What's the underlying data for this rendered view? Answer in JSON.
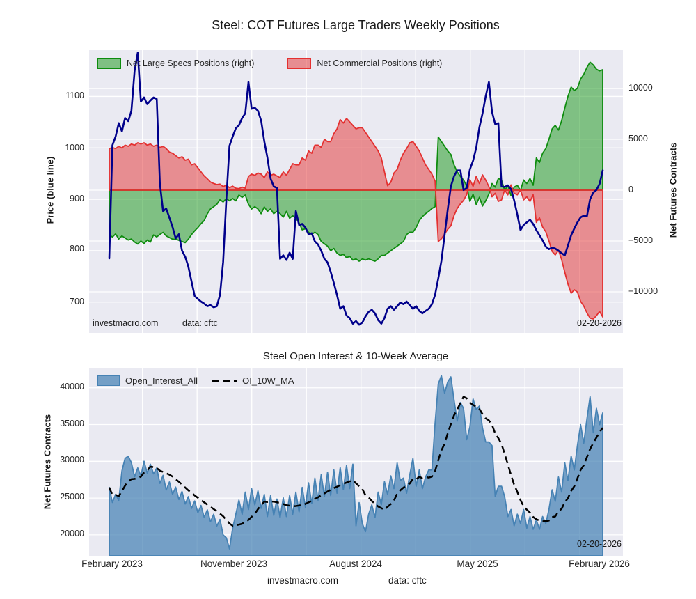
{
  "figure_title": "Steel: COT Futures Large Traders Weekly Positions",
  "footer": {
    "site": "investmacro.com",
    "source": "data: cftc"
  },
  "colors": {
    "plot_bg": "#eaeaf2",
    "grid": "#ffffff",
    "price_line": "#00008b",
    "specs_edge": "#0e8c0e",
    "specs_fill": "rgba(20,150,20,0.5)",
    "comm_edge": "#e43030",
    "comm_fill": "rgba(228,48,48,0.5)",
    "oi_edge": "#4682b4",
    "oi_fill": "rgba(70,130,180,0.72)",
    "ma_line": "#000000"
  },
  "chart_data": [
    {
      "type": "line",
      "title": "Steel: COT Futures Large Traders Weekly Positions",
      "x_range": "February 2023 - February 2026",
      "frequency": "weekly",
      "ylabel_left": "Price (blue line)",
      "ylabel_right": "Net Futures Contracts",
      "yticks_left": [
        "700",
        "800",
        "900",
        "1000",
        "1100"
      ],
      "yticks_right": [
        "−10000",
        "−5000",
        "0",
        "5000",
        "10000"
      ],
      "ylim_left": [
        640,
        1190
      ],
      "ylim_right": [
        -14040,
        13770
      ],
      "grid": true,
      "legend_position": "upper-left-horizontal",
      "legend": [
        {
          "label": "Net Large Specs Positions (right)"
        },
        {
          "label": "Net Commercial Positions (right)"
        }
      ],
      "annotations": {
        "site": "investmacro.com",
        "source": "data: cftc",
        "date": "02-20-2026"
      },
      "series": [
        {
          "name": "Price",
          "axis": "left",
          "style": "line",
          "values": [
            785,
            1005,
            1022,
            1048,
            1032,
            1058,
            1052,
            1072,
            1150,
            1185,
            1090,
            1098,
            1085,
            1092,
            1098,
            1095,
            931,
            877,
            882,
            864,
            846,
            824,
            832,
            800,
            788,
            769,
            740,
            712,
            706,
            701,
            697,
            692,
            694,
            690,
            692,
            714,
            778,
            900,
            1004,
            1022,
            1038,
            1044,
            1058,
            1067,
            1128,
            1076,
            1078,
            1072,
            1053,
            1013,
            981,
            940,
            925,
            922,
            784,
            791,
            782,
            796,
            784,
            877,
            850,
            852,
            845,
            832,
            834,
            818,
            812,
            800,
            784,
            777,
            759,
            737,
            714,
            687,
            692,
            674,
            669,
            658,
            663,
            656,
            660,
            672,
            681,
            685,
            678,
            665,
            658,
            669,
            687,
            692,
            685,
            692,
            699,
            696,
            701,
            694,
            687,
            692,
            683,
            678,
            683,
            687,
            696,
            714,
            746,
            780,
            830,
            880,
            925,
            945,
            956,
            956,
            918,
            922,
            958,
            975,
            1000,
            1040,
            1067,
            1100,
            1128,
            1070,
            1046,
            1048,
            925,
            924,
            927,
            920,
            898,
            870,
            840,
            850,
            855,
            860,
            852,
            840,
            830,
            820,
            808,
            803,
            806,
            804,
            800,
            795,
            791,
            810,
            830,
            843,
            855,
            865,
            868,
            867,
            900,
            913,
            918,
            930,
            956
          ]
        },
        {
          "name": "Net Large Specs Positions",
          "axis": "right",
          "style": "area",
          "values": [
            -4400,
            -4600,
            -4300,
            -4800,
            -4500,
            -4700,
            -4900,
            -4800,
            -5100,
            -5300,
            -5000,
            -5250,
            -4900,
            -5100,
            -4400,
            -4600,
            -4350,
            -4150,
            -4500,
            -4660,
            -4818,
            -4818,
            -4932,
            -5048,
            -5160,
            -4818,
            -4360,
            -4000,
            -3675,
            -3300,
            -2990,
            -2308,
            -1850,
            -1620,
            -1390,
            -938,
            -1164,
            -822,
            -1048,
            -822,
            -1048,
            -480,
            -705,
            -480,
            -1390,
            -1850,
            -1620,
            -1850,
            -2308,
            -1650,
            -2080,
            -1850,
            -2308,
            -2080,
            -2308,
            -2650,
            -2080,
            -2764,
            -2500,
            -2764,
            -3219,
            -3904,
            -3790,
            -4133,
            -4361,
            -4133,
            -4361,
            -5047,
            -5275,
            -5503,
            -5960,
            -5732,
            -6188,
            -6416,
            -6302,
            -6645,
            -6500,
            -6873,
            -6759,
            -6987,
            -6759,
            -6873,
            -6759,
            -6873,
            -6987,
            -6759,
            -6416,
            -6416,
            -6188,
            -5960,
            -5732,
            -5503,
            -5275,
            -5047,
            -4362,
            -4133,
            -4133,
            -3676,
            -2992,
            -2600,
            -2308,
            -2079,
            -1800,
            -1623,
            5227,
            4774,
            4315,
            3857,
            3514,
            2487,
            1802,
            1350,
            1007,
            432,
            -1100,
            -400,
            -1400,
            -700,
            -1560,
            -1050,
            -380,
            650,
            300,
            1150,
            1000,
            -30,
            480,
            -550,
            300,
            480,
            -30,
            1000,
            650,
            1150,
            480,
            3172,
            2719,
            3631,
            4089,
            5001,
            6028,
            6371,
            5912,
            6827,
            8083,
            9226,
            10138,
            9796,
            10022,
            10937,
            11392,
            12077,
            12584,
            12310,
            11899,
            11735,
            11851
          ]
        },
        {
          "name": "Net Commercial Positions",
          "axis": "right",
          "style": "area",
          "values": [
            4090,
            4200,
            4090,
            4315,
            4150,
            4430,
            4315,
            4540,
            4430,
            4660,
            4540,
            4660,
            4430,
            4540,
            4315,
            4430,
            4200,
            4315,
            4090,
            3745,
            3630,
            3400,
            3170,
            3300,
            2945,
            3050,
            2490,
            2600,
            2200,
            1800,
            1400,
            1117,
            800,
            660,
            550,
            600,
            350,
            500,
            250,
            400,
            200,
            150,
            300,
            200,
            1350,
            1575,
            1459,
            1690,
            1575,
            1233,
            1800,
            1459,
            1575,
            1400,
            1233,
            1800,
            1459,
            2034,
            2603,
            2487,
            2487,
            3172,
            2945,
            3857,
            3630,
            4430,
            4430,
            4200,
            5000,
            4774,
            4774,
            5569,
            6028,
            6940,
            6597,
            7055,
            6713,
            6371,
            6028,
            6142,
            6142,
            5686,
            5227,
            4774,
            4315,
            3857,
            3172,
            1800,
            432,
            774,
            1690,
            2034,
            2945,
            3630,
            4089,
            4660,
            4774,
            4315,
            3857,
            3172,
            2487,
            2034,
            1575,
            890,
            -5048,
            -4774,
            -4315,
            -3857,
            -3514,
            -2487,
            -1802,
            -1350,
            -1007,
            -432,
            1050,
            380,
            1350,
            650,
            1500,
            1000,
            350,
            -650,
            -300,
            -1100,
            -950,
            30,
            -460,
            520,
            -300,
            -460,
            30,
            -950,
            -650,
            -1100,
            -460,
            -3172,
            -2719,
            -3631,
            -4089,
            -5001,
            -6028,
            -6371,
            -5912,
            -6827,
            -8083,
            -9226,
            -10138,
            -9796,
            -10022,
            -10937,
            -11392,
            -12077,
            -12584,
            -12670,
            -12340,
            -11930,
            -12470
          ]
        }
      ]
    },
    {
      "type": "area",
      "title": "Steel Open Interest & 10-Week Average",
      "x_range": "February 2023 - February 2026",
      "frequency": "weekly",
      "ylabel_left": "Net Futures Contracts",
      "yticks_left": [
        "20000",
        "25000",
        "30000",
        "35000",
        "40000"
      ],
      "ylim": [
        17150,
        42720
      ],
      "grid": true,
      "x_tick_labels": [
        "February 2023",
        "November 2023",
        "August 2024",
        "May 2025",
        "February 2026"
      ],
      "legend_position": "upper-left-horizontal",
      "legend": [
        {
          "label": "Open_Interest_All"
        },
        {
          "label": "OI_10W_MA"
        }
      ],
      "annotations": {
        "date": "02-20-2026"
      },
      "series": [
        {
          "name": "Open_Interest_All",
          "style": "area",
          "values": [
            26450,
            24400,
            25500,
            24700,
            28700,
            30400,
            30700,
            29800,
            27900,
            29100,
            28000,
            30000,
            28400,
            29600,
            28300,
            29100,
            27000,
            28100,
            26100,
            27200,
            25500,
            26500,
            24800,
            25900,
            24200,
            25200,
            23600,
            24600,
            23000,
            24000,
            22400,
            23400,
            21800,
            22800,
            21200,
            22100,
            20000,
            19600,
            18100,
            20915,
            22815,
            24715,
            22815,
            25815,
            23445,
            26290,
            24080,
            25975,
            23605,
            25505,
            22495,
            25345,
            22655,
            24870,
            22345,
            25030,
            22495,
            25345,
            22815,
            25815,
            23130,
            26450,
            23765,
            27085,
            24240,
            27715,
            24715,
            28190,
            25190,
            28510,
            25345,
            28825,
            25665,
            29140,
            26135,
            29460,
            26290,
            29615,
            21235,
            24390,
            21545,
            20440,
            22815,
            24080,
            22345,
            25815,
            24080,
            27240,
            25505,
            28035,
            26290,
            29775,
            27400,
            27715,
            25665,
            28190,
            30410,
            26615,
            28825,
            26290,
            27875,
            28825,
            28825,
            35154,
            40527,
            41640,
            39265,
            40800,
            41476,
            38315,
            35468,
            37999,
            37202,
            32935,
            34680,
            38473,
            37050,
            37525,
            34520,
            32620,
            32620,
            32145,
            25190,
            26615,
            26615,
            25190,
            22495,
            23445,
            21235,
            22815,
            21545,
            23445,
            20915,
            22495,
            20760,
            22025,
            20760,
            22495,
            21545,
            23445,
            26135,
            24555,
            27875,
            25815,
            29775,
            27400,
            30720,
            28825,
            32145,
            34995,
            32460,
            35785,
            38790,
            33885,
            37205,
            34995,
            36575
          ]
        },
        {
          "name": "OI_10W_MA",
          "style": "dashed-line",
          "derived_from": "Open_Interest_All",
          "window": 10
        }
      ]
    }
  ]
}
